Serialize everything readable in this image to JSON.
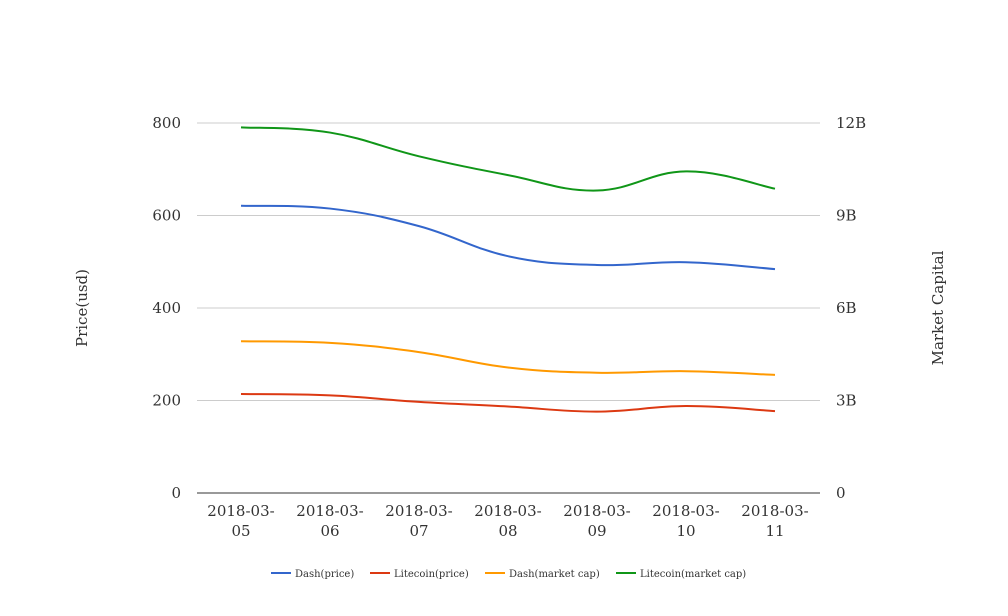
{
  "chart_data": {
    "type": "line",
    "categories": [
      "2018-03-05",
      "2018-03-06",
      "2018-03-07",
      "2018-03-08",
      "2018-03-09",
      "2018-03-10",
      "2018-03-11"
    ],
    "category_lines": [
      [
        "2018-03-",
        "05"
      ],
      [
        "2018-03-",
        "06"
      ],
      [
        "2018-03-",
        "07"
      ],
      [
        "2018-03-",
        "08"
      ],
      [
        "2018-03-",
        "09"
      ],
      [
        "2018-03-",
        "10"
      ],
      [
        "2018-03-",
        "11"
      ]
    ],
    "ylabel_left": "Price(usd)",
    "ylabel_right": "Market Capital",
    "ylim_left": [
      0,
      800
    ],
    "ylim_right": [
      0,
      12000000000
    ],
    "yticks_left": [
      "0",
      "200",
      "400",
      "600",
      "800"
    ],
    "yticks_right": [
      "0",
      "3B",
      "6B",
      "9B",
      "12B"
    ],
    "grid": true,
    "legend_position": "bottom",
    "series": [
      {
        "name": "Dash(price)",
        "axis": "left",
        "color": "#3366cc",
        "values": [
          621,
          615,
          577,
          512,
          493,
          499,
          484
        ]
      },
      {
        "name": "Litecoin(price)",
        "axis": "left",
        "color": "#dc3912",
        "values": [
          214,
          211,
          197,
          187,
          176,
          188,
          177
        ]
      },
      {
        "name": "Dash(market cap)",
        "axis": "right",
        "color": "#ff9900",
        "values": [
          4920000000,
          4870000000,
          4570000000,
          4070000000,
          3900000000,
          3950000000,
          3830000000
        ]
      },
      {
        "name": "Litecoin(market cap)",
        "axis": "right",
        "color": "#109618",
        "values": [
          11860000000,
          11690000000,
          10920000000,
          10310000000,
          9810000000,
          10430000000,
          9870000000
        ]
      }
    ]
  }
}
